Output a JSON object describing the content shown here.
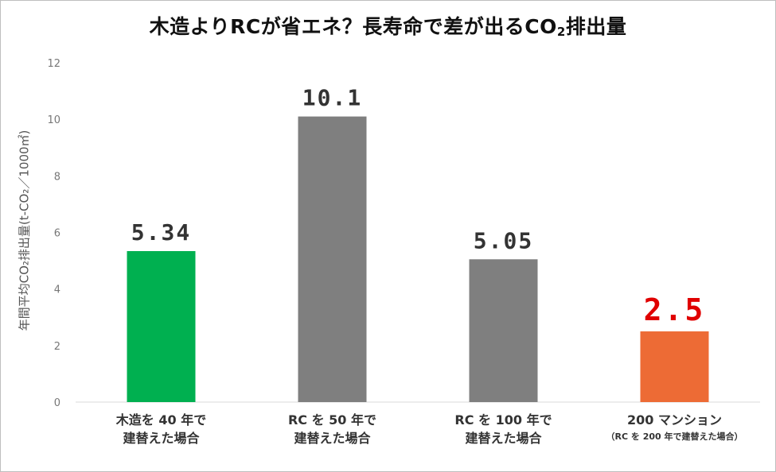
{
  "title_main": "木造よりRCが省エネ？長寿命で差が出るCO",
  "title_sub": "2",
  "title_tail": "排出量",
  "chart_data": {
    "type": "bar",
    "title": "木造よりRCが省エネ？長寿命で差が出るCO₂排出量",
    "ylabel": "年間平均CO₂排出量(t-CO₂／1000㎡)",
    "xlabel": "",
    "ylim": [
      0,
      12
    ],
    "yticks": [
      0,
      2,
      4,
      6,
      8,
      10,
      12
    ],
    "grid": false,
    "legend": "none",
    "categories": [
      {
        "line1": "木造を 40 年で",
        "line2": "建替えた場合",
        "small": ""
      },
      {
        "line1": "RC を 50 年で",
        "line2": "建替えた場合",
        "small": ""
      },
      {
        "line1": "RC を 100 年で",
        "line2": "建替えた場合",
        "small": ""
      },
      {
        "line1": "200 マンション",
        "line2": "",
        "small": "（RC を 200 年で建替えた場合）"
      }
    ],
    "values": [
      5.34,
      10.1,
      5.05,
      2.5
    ],
    "value_labels": [
      "5.34",
      "10.1",
      "5.05",
      "2.5"
    ],
    "colors": [
      "#00b050",
      "#7f7f7f",
      "#7f7f7f",
      "#ed6b35"
    ],
    "label_colors": [
      "#333333",
      "#333333",
      "#333333",
      "#e00000"
    ],
    "axis_color": "#d9d9d9",
    "tick_label_color": "#777777"
  }
}
